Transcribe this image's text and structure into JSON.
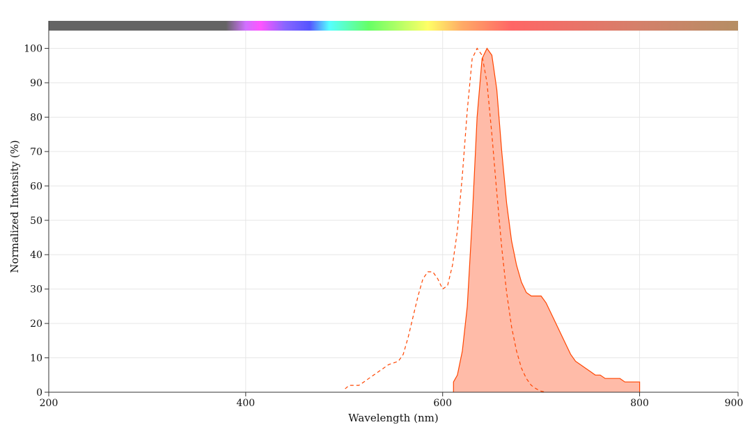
{
  "chart_data": {
    "type": "area",
    "xlabel": "Wavelength (nm)",
    "ylabel": "Normalized Intensity (%)",
    "xlim": [
      200,
      900
    ],
    "ylim": [
      0,
      108
    ],
    "x_ticks": [
      200,
      400,
      600,
      800,
      900
    ],
    "y_ticks": [
      0,
      10,
      20,
      30,
      40,
      50,
      60,
      70,
      80,
      90,
      100
    ],
    "grid": true,
    "legend": "none",
    "spectrum_bar": {
      "stops": [
        {
          "nm": 200,
          "color": "#646464"
        },
        {
          "nm": 380,
          "color": "#646464"
        },
        {
          "nm": 400,
          "color": "#d070ff"
        },
        {
          "nm": 415,
          "color": "#ff55ff"
        },
        {
          "nm": 440,
          "color": "#8866ff"
        },
        {
          "nm": 465,
          "color": "#5555ff"
        },
        {
          "nm": 485,
          "color": "#55ffff"
        },
        {
          "nm": 525,
          "color": "#66ff66"
        },
        {
          "nm": 585,
          "color": "#ffff66"
        },
        {
          "nm": 620,
          "color": "#ffaa66"
        },
        {
          "nm": 670,
          "color": "#ff6666"
        },
        {
          "nm": 800,
          "color": "#d4806a"
        },
        {
          "nm": 900,
          "color": "#b58e64"
        }
      ]
    },
    "series": [
      {
        "role": "excitation",
        "style": "dashed",
        "color": "#ff4500",
        "x": [
          501,
          505,
          515,
          520,
          530,
          535,
          540,
          545,
          555,
          560,
          565,
          570,
          575,
          580,
          585,
          590,
          595,
          600,
          605,
          610,
          615,
          620,
          625,
          630,
          635,
          640,
          645,
          650,
          655,
          660,
          665,
          670,
          675,
          680,
          685,
          690,
          695,
          700,
          705
        ],
        "y": [
          1,
          2,
          2,
          3,
          5,
          6,
          7,
          8,
          9,
          11,
          16,
          22,
          28,
          33,
          35,
          35,
          33,
          30,
          31,
          37,
          47,
          63,
          82,
          97,
          100,
          98,
          90,
          75,
          58,
          42,
          29,
          19,
          12,
          7,
          4,
          2,
          1,
          0.3,
          0
        ]
      },
      {
        "role": "emission",
        "style": "filled",
        "color": "#ff4500",
        "fill": "#ffbba8",
        "x": [
          611,
          615,
          620,
          625,
          630,
          635,
          640,
          645,
          650,
          655,
          660,
          665,
          670,
          675,
          680,
          685,
          690,
          695,
          700,
          705,
          710,
          715,
          720,
          725,
          730,
          735,
          740,
          745,
          750,
          755,
          760,
          765,
          770,
          775,
          780,
          785,
          790,
          795,
          800
        ],
        "y": [
          3,
          5,
          12,
          25,
          50,
          80,
          97,
          100,
          98,
          88,
          70,
          55,
          44,
          37,
          32,
          29,
          28,
          28,
          28,
          26,
          23,
          20,
          17,
          14,
          11,
          9,
          8,
          7,
          6,
          5,
          5,
          4,
          4,
          4,
          4,
          3,
          3,
          3,
          3
        ]
      }
    ]
  }
}
